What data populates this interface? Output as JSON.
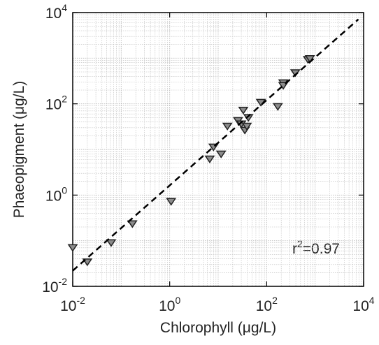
{
  "chart_data": {
    "type": "scatter",
    "xlabel": "Chlorophyll (μg/L)",
    "ylabel": "Phaeopigment (μg/L)",
    "annotation": [
      "r",
      "2",
      "=0.97"
    ],
    "xscale": "log",
    "yscale": "log",
    "xlim": [
      0.01,
      10000
    ],
    "ylim": [
      0.01,
      10000
    ],
    "xticks": [
      {
        "value": 0.01,
        "label": {
          "base": "10",
          "exponent": "-2"
        }
      },
      {
        "value": 1,
        "label": {
          "base": "10",
          "exponent": "0"
        }
      },
      {
        "value": 100,
        "label": {
          "base": "10",
          "exponent": "2"
        }
      },
      {
        "value": 10000,
        "label": {
          "base": "10",
          "exponent": "4"
        }
      }
    ],
    "yticks": [
      {
        "value": 0.01,
        "label": {
          "base": "10",
          "exponent": "-2"
        }
      },
      {
        "value": 1,
        "label": {
          "base": "10",
          "exponent": "0"
        }
      },
      {
        "value": 100,
        "label": {
          "base": "10",
          "exponent": "2"
        }
      },
      {
        "value": 10000,
        "label": {
          "base": "10",
          "exponent": "4"
        }
      }
    ],
    "grid": true,
    "series": [
      {
        "color": "#8c8c8c",
        "marker": "triangle-down",
        "x": [
          0.01,
          0.02,
          0.062,
          0.17,
          1.07,
          6.7,
          8,
          11.5,
          15.5,
          25.7,
          30,
          33,
          35.5,
          39,
          42,
          76,
          170,
          220,
          220,
          390,
          710,
          780
        ],
        "values": [
          0.072,
          0.035,
          0.092,
          0.24,
          0.74,
          6.3,
          11.5,
          8.1,
          33,
          44,
          37,
          74,
          27,
          33,
          51,
          110,
          89,
          295,
          257,
          490,
          955,
          1000
        ]
      },
      {
        "color": "#000000",
        "line": "dashed",
        "x": [
          0.01,
          7800
        ],
        "values": [
          0.022,
          7100
        ]
      }
    ]
  }
}
